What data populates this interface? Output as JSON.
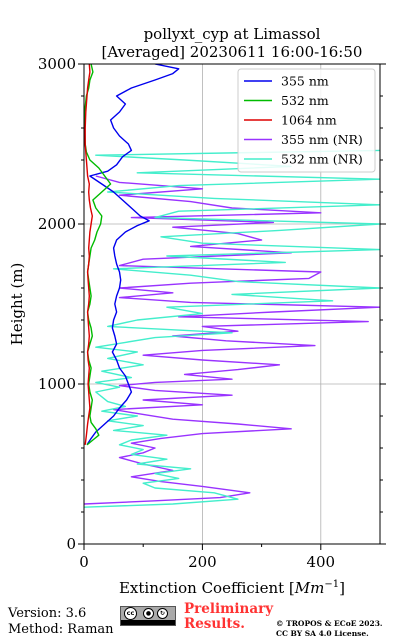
{
  "chart_data": {
    "type": "line",
    "title": "pollyxt_cyp at Limassol",
    "subtitle": "[Averaged] 20230611 16:00-16:50",
    "xlabel_main": "Extinction Coefficient [",
    "xlabel_unit": "Mm",
    "xlabel_exp": "−1",
    "xlabel_end": "]",
    "ylabel": "Height (m)",
    "xlim": [
      0,
      500
    ],
    "ylim": [
      0,
      3000
    ],
    "xticks": [
      0,
      200,
      400
    ],
    "yticks": [
      0,
      1000,
      2000,
      3000
    ],
    "grid": true,
    "legend_position": "top-right",
    "series": [
      {
        "name": "355 nm",
        "color": "#0000ee",
        "points": [
          [
            5,
            620
          ],
          [
            12,
            660
          ],
          [
            20,
            700
          ],
          [
            35,
            750
          ],
          [
            50,
            800
          ],
          [
            60,
            850
          ],
          [
            72,
            900
          ],
          [
            80,
            950
          ],
          [
            75,
            1000
          ],
          [
            70,
            1050
          ],
          [
            60,
            1100
          ],
          [
            55,
            1150
          ],
          [
            48,
            1200
          ],
          [
            55,
            1250
          ],
          [
            52,
            1300
          ],
          [
            48,
            1350
          ],
          [
            50,
            1400
          ],
          [
            55,
            1450
          ],
          [
            52,
            1500
          ],
          [
            55,
            1550
          ],
          [
            60,
            1600
          ],
          [
            62,
            1650
          ],
          [
            60,
            1700
          ],
          [
            55,
            1750
          ],
          [
            52,
            1800
          ],
          [
            50,
            1850
          ],
          [
            55,
            1900
          ],
          [
            70,
            1950
          ],
          [
            90,
            1990
          ],
          [
            110,
            2020
          ],
          [
            95,
            2050
          ],
          [
            80,
            2100
          ],
          [
            65,
            2150
          ],
          [
            50,
            2200
          ],
          [
            30,
            2250
          ],
          [
            10,
            2300
          ],
          [
            40,
            2330
          ],
          [
            55,
            2370
          ],
          [
            65,
            2420
          ],
          [
            80,
            2460
          ],
          [
            75,
            2500
          ],
          [
            60,
            2550
          ],
          [
            50,
            2600
          ],
          [
            45,
            2650
          ],
          [
            60,
            2700
          ],
          [
            70,
            2750
          ],
          [
            55,
            2800
          ],
          [
            80,
            2850
          ],
          [
            120,
            2900
          ],
          [
            150,
            2940
          ],
          [
            160,
            2970
          ],
          [
            120,
            3000
          ]
        ]
      },
      {
        "name": "532 nm",
        "color": "#00bb00",
        "points": [
          [
            5,
            620
          ],
          [
            15,
            650
          ],
          [
            25,
            680
          ],
          [
            20,
            720
          ],
          [
            12,
            760
          ],
          [
            10,
            800
          ],
          [
            12,
            850
          ],
          [
            14,
            900
          ],
          [
            10,
            950
          ],
          [
            8,
            1000
          ],
          [
            10,
            1050
          ],
          [
            12,
            1100
          ],
          [
            8,
            1150
          ],
          [
            6,
            1200
          ],
          [
            10,
            1250
          ],
          [
            14,
            1300
          ],
          [
            12,
            1350
          ],
          [
            8,
            1400
          ],
          [
            6,
            1450
          ],
          [
            10,
            1500
          ],
          [
            12,
            1550
          ],
          [
            10,
            1600
          ],
          [
            8,
            1650
          ],
          [
            6,
            1700
          ],
          [
            8,
            1750
          ],
          [
            10,
            1800
          ],
          [
            12,
            1850
          ],
          [
            18,
            1900
          ],
          [
            22,
            1950
          ],
          [
            28,
            2000
          ],
          [
            30,
            2050
          ],
          [
            20,
            2100
          ],
          [
            15,
            2150
          ],
          [
            30,
            2200
          ],
          [
            45,
            2250
          ],
          [
            35,
            2300
          ],
          [
            25,
            2350
          ],
          [
            10,
            2400
          ],
          [
            4,
            2450
          ],
          [
            2,
            2500
          ],
          [
            1,
            2600
          ],
          [
            1,
            2700
          ],
          [
            4,
            2800
          ],
          [
            8,
            2850
          ],
          [
            10,
            2900
          ],
          [
            15,
            2950
          ],
          [
            12,
            3000
          ]
        ]
      },
      {
        "name": "1064 nm",
        "color": "#dd0000",
        "points": [
          [
            2,
            620
          ],
          [
            4,
            680
          ],
          [
            6,
            750
          ],
          [
            8,
            800
          ],
          [
            10,
            850
          ],
          [
            9,
            900
          ],
          [
            8,
            950
          ],
          [
            7,
            1000
          ],
          [
            8,
            1050
          ],
          [
            9,
            1100
          ],
          [
            7,
            1150
          ],
          [
            6,
            1200
          ],
          [
            8,
            1250
          ],
          [
            9,
            1300
          ],
          [
            8,
            1350
          ],
          [
            7,
            1400
          ],
          [
            6,
            1450
          ],
          [
            8,
            1500
          ],
          [
            9,
            1550
          ],
          [
            8,
            1600
          ],
          [
            7,
            1650
          ],
          [
            6,
            1700
          ],
          [
            8,
            1750
          ],
          [
            9,
            1800
          ],
          [
            8,
            1850
          ],
          [
            9,
            1900
          ],
          [
            10,
            1950
          ],
          [
            12,
            2000
          ],
          [
            14,
            2050
          ],
          [
            11,
            2100
          ],
          [
            9,
            2150
          ],
          [
            8,
            2200
          ],
          [
            9,
            2250
          ],
          [
            6,
            2300
          ],
          [
            4,
            2400
          ],
          [
            2,
            2500
          ],
          [
            2,
            2600
          ],
          [
            3,
            2700
          ],
          [
            5,
            2800
          ],
          [
            6,
            2850
          ],
          [
            8,
            2900
          ],
          [
            10,
            2950
          ],
          [
            9,
            3000
          ]
        ]
      },
      {
        "name": "355 nm (NR)",
        "color": "#9933ff",
        "points": [
          [
            0,
            250
          ],
          [
            120,
            270
          ],
          [
            230,
            290
          ],
          [
            280,
            320
          ],
          [
            200,
            360
          ],
          [
            130,
            390
          ],
          [
            80,
            420
          ],
          [
            150,
            460
          ],
          [
            100,
            500
          ],
          [
            60,
            540
          ],
          [
            100,
            570
          ],
          [
            120,
            600
          ],
          [
            80,
            630
          ],
          [
            130,
            660
          ],
          [
            200,
            690
          ],
          [
            350,
            720
          ],
          [
            260,
            750
          ],
          [
            150,
            780
          ],
          [
            100,
            810
          ],
          [
            50,
            840
          ],
          [
            200,
            870
          ],
          [
            100,
            900
          ],
          [
            250,
            930
          ],
          [
            120,
            960
          ],
          [
            60,
            990
          ],
          [
            120,
            1010
          ],
          [
            250,
            1030
          ],
          [
            170,
            1060
          ],
          [
            260,
            1090
          ],
          [
            330,
            1120
          ],
          [
            200,
            1150
          ],
          [
            100,
            1180
          ],
          [
            200,
            1210
          ],
          [
            390,
            1240
          ],
          [
            240,
            1270
          ],
          [
            150,
            1300
          ],
          [
            260,
            1330
          ],
          [
            200,
            1360
          ],
          [
            480,
            1390
          ],
          [
            160,
            1420
          ],
          [
            320,
            1450
          ],
          [
            500,
            1480
          ],
          [
            180,
            1510
          ],
          [
            60,
            1540
          ],
          [
            150,
            1570
          ],
          [
            60,
            1600
          ],
          [
            180,
            1630
          ],
          [
            380,
            1660
          ],
          [
            400,
            1700
          ],
          [
            60,
            1740
          ],
          [
            100,
            1780
          ],
          [
            350,
            1820
          ],
          [
            180,
            1860
          ],
          [
            300,
            1900
          ],
          [
            260,
            1940
          ],
          [
            150,
            1980
          ],
          [
            320,
            2010
          ],
          [
            80,
            2040
          ],
          [
            400,
            2070
          ],
          [
            250,
            2100
          ],
          [
            180,
            2140
          ],
          [
            60,
            2180
          ],
          [
            200,
            2220
          ],
          [
            60,
            2260
          ],
          [
            20,
            2300
          ]
        ]
      },
      {
        "name": "532 nm (NR)",
        "color": "#44eecc",
        "points": [
          [
            0,
            230
          ],
          [
            150,
            250
          ],
          [
            260,
            280
          ],
          [
            220,
            320
          ],
          [
            120,
            350
          ],
          [
            100,
            380
          ],
          [
            160,
            410
          ],
          [
            120,
            440
          ],
          [
            180,
            470
          ],
          [
            90,
            500
          ],
          [
            140,
            530
          ],
          [
            80,
            560
          ],
          [
            100,
            590
          ],
          [
            60,
            620
          ],
          [
            80,
            650
          ],
          [
            140,
            680
          ],
          [
            50,
            710
          ],
          [
            100,
            740
          ],
          [
            40,
            770
          ],
          [
            90,
            800
          ],
          [
            30,
            830
          ],
          [
            70,
            860
          ],
          [
            40,
            890
          ],
          [
            30,
            920
          ],
          [
            20,
            950
          ],
          [
            60,
            980
          ],
          [
            20,
            1010
          ],
          [
            80,
            1040
          ],
          [
            30,
            1080
          ],
          [
            100,
            1120
          ],
          [
            40,
            1160
          ],
          [
            90,
            1200
          ],
          [
            20,
            1230
          ],
          [
            70,
            1260
          ],
          [
            120,
            1290
          ],
          [
            250,
            1320
          ],
          [
            40,
            1360
          ],
          [
            90,
            1400
          ],
          [
            200,
            1440
          ],
          [
            140,
            1480
          ],
          [
            420,
            1520
          ],
          [
            250,
            1560
          ],
          [
            500,
            1600
          ],
          [
            260,
            1640
          ],
          [
            180,
            1680
          ],
          [
            50,
            1720
          ],
          [
            340,
            1760
          ],
          [
            140,
            1800
          ],
          [
            500,
            1840
          ],
          [
            200,
            1880
          ],
          [
            130,
            1920
          ],
          [
            330,
            1960
          ],
          [
            500,
            2000
          ],
          [
            120,
            2040
          ],
          [
            160,
            2080
          ],
          [
            500,
            2120
          ],
          [
            220,
            2160
          ],
          [
            40,
            2200
          ],
          [
            160,
            2240
          ],
          [
            500,
            2280
          ],
          [
            90,
            2320
          ],
          [
            350,
            2360
          ],
          [
            170,
            2400
          ],
          [
            20,
            2430
          ],
          [
            500,
            2460
          ]
        ]
      }
    ]
  },
  "footer": {
    "version": "Version: 3.6",
    "method": "Method: Raman",
    "cc_labels": [
      "by",
      "sa"
    ],
    "prelim_line1": "Preliminary",
    "prelim_line2": "Results.",
    "copyright_line1": "© TROPOS & ECoE 2023.",
    "copyright_line2": "CC BY SA 4.0 License."
  }
}
